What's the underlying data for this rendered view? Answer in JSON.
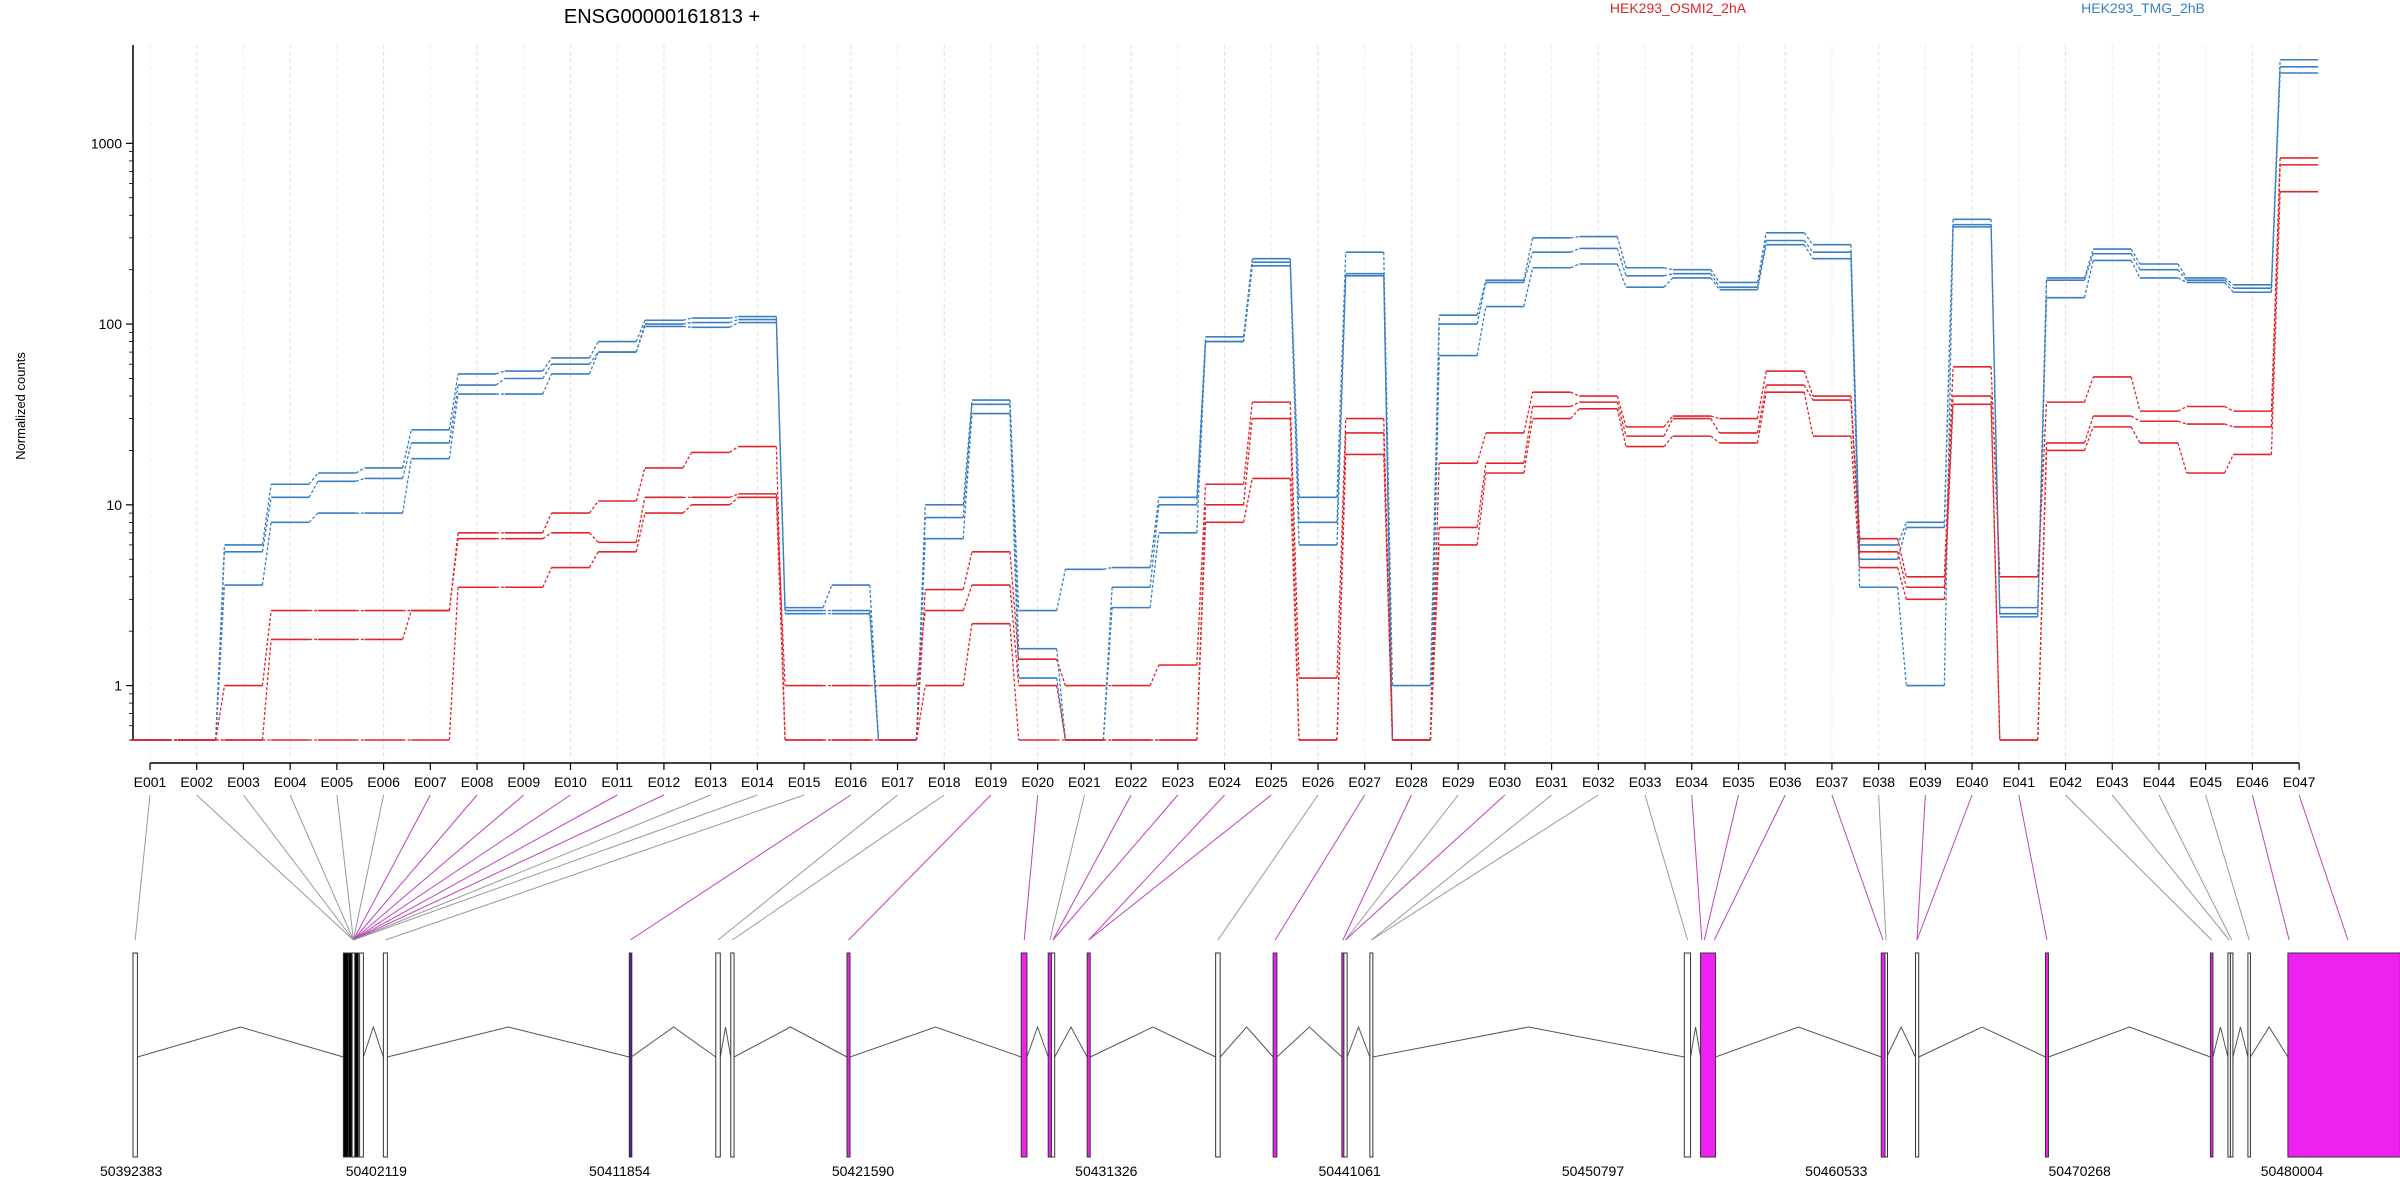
{
  "chart_data": {
    "type": "line",
    "title": "ENSG00000161813 +",
    "ylabel": "Normalized counts",
    "yscale": "log",
    "ylim": [
      0.5,
      3500
    ],
    "grid": false,
    "legend_position": "top-right",
    "y_ticks": [
      {
        "value": 1,
        "label": "1"
      },
      {
        "value": 10,
        "label": "10"
      },
      {
        "value": 100,
        "label": "100"
      },
      {
        "value": 1000,
        "label": "1000"
      }
    ],
    "categories": [
      "E001",
      "E002",
      "E003",
      "E004",
      "E005",
      "E006",
      "E007",
      "E008",
      "E009",
      "E010",
      "E011",
      "E012",
      "E013",
      "E014",
      "E015",
      "E016",
      "E017",
      "E018",
      "E019",
      "E020",
      "E021",
      "E022",
      "E023",
      "E024",
      "E025",
      "E026",
      "E027",
      "E028",
      "E029",
      "E030",
      "E031",
      "E032",
      "E033",
      "E034",
      "E035",
      "E036",
      "E037",
      "E038",
      "E039",
      "E040",
      "E041",
      "E042",
      "E043",
      "E044",
      "E045",
      "E046",
      "E047"
    ],
    "groups": [
      {
        "name": "HEK293_OSMI2_2hA",
        "color": "#e0262b"
      },
      {
        "name": "HEK293_TMG_2hB",
        "color": "#3a7fc1"
      }
    ],
    "series": [
      {
        "group": "HEK293_TMG_2hB",
        "values": [
          0.5,
          0.5,
          6,
          13,
          15,
          16,
          26,
          53,
          55,
          65,
          80,
          105,
          108,
          110,
          2.7,
          3.6,
          0.5,
          10,
          38,
          2.6,
          4.4,
          4.5,
          11,
          85,
          230,
          11,
          250,
          1,
          112,
          175,
          300,
          305,
          205,
          200,
          170,
          320,
          275,
          6,
          8,
          380,
          2.7,
          180,
          260,
          215,
          180,
          165,
          2900
        ]
      },
      {
        "group": "HEK293_TMG_2hB",
        "values": [
          0.5,
          0.5,
          5.5,
          11,
          13.5,
          14,
          22,
          46,
          50,
          60,
          70,
          100,
          102,
          106,
          2.6,
          2.6,
          0.5,
          8.5,
          36,
          1.6,
          0.5,
          3.5,
          10,
          80,
          220,
          8,
          190,
          0.5,
          100,
          170,
          250,
          262,
          185,
          190,
          160,
          290,
          250,
          5,
          7.5,
          355,
          2.5,
          175,
          245,
          200,
          175,
          158,
          2650
        ]
      },
      {
        "group": "HEK293_TMG_2hB",
        "values": [
          0.5,
          0.5,
          3.6,
          8,
          9,
          9,
          18,
          41,
          41,
          53,
          70,
          97,
          96,
          102,
          2.5,
          2.5,
          0.5,
          6.5,
          32,
          1.1,
          0.5,
          2.7,
          7,
          80,
          210,
          6,
          185,
          0.5,
          67,
          125,
          205,
          215,
          160,
          180,
          155,
          275,
          230,
          3.5,
          1,
          345,
          2.4,
          140,
          225,
          180,
          170,
          150,
          2450
        ]
      },
      {
        "group": "HEK293_OSMI2_2hA",
        "values": [
          0.5,
          0.5,
          1,
          2.6,
          2.6,
          2.6,
          2.6,
          7,
          7,
          9,
          10.5,
          16,
          19.5,
          21,
          0.5,
          0.5,
          0.5,
          3.4,
          5.5,
          1.4,
          1,
          1,
          1.3,
          13,
          37,
          1.1,
          30,
          0.5,
          17,
          25,
          42,
          40,
          27,
          31,
          30,
          55,
          40,
          6.5,
          4,
          58,
          4,
          37,
          51,
          33,
          35,
          33,
          830
        ]
      },
      {
        "group": "HEK293_OSMI2_2hA",
        "values": [
          0.5,
          0.5,
          0.5,
          1.8,
          1.8,
          1.8,
          2.6,
          6.5,
          6.5,
          7,
          6.2,
          11,
          11,
          11.5,
          1,
          1,
          1,
          2.6,
          3.6,
          1,
          0.5,
          0.5,
          0.5,
          10,
          30,
          0.5,
          25,
          0.5,
          7.5,
          17,
          35,
          37,
          24,
          30,
          25,
          46,
          38,
          5.5,
          3.5,
          40,
          0.5,
          22,
          31,
          29,
          28,
          27,
          760
        ]
      },
      {
        "group": "HEK293_OSMI2_2hA",
        "values": [
          0.5,
          0.5,
          0.5,
          0.5,
          0.5,
          0.5,
          0.5,
          3.5,
          3.5,
          4.5,
          5.5,
          9,
          10,
          11,
          0.5,
          0.5,
          0.5,
          1,
          2.2,
          0.5,
          0.5,
          0.5,
          0.5,
          8,
          14,
          0.5,
          19,
          0.5,
          6,
          15,
          30,
          34,
          21,
          24,
          22,
          42,
          24,
          4.5,
          3,
          36,
          0.5,
          20,
          27,
          22,
          15,
          19,
          540
        ]
      }
    ],
    "genomic_axis": {
      "start": 50392383,
      "end": 50480004,
      "tick_labels": [
        "50392383",
        "50402119",
        "50411854",
        "50421590",
        "50431326",
        "50441061",
        "50450797",
        "50460533",
        "50470268",
        "50480004"
      ],
      "exons": [
        {
          "start": 50392383,
          "end": 50392560,
          "fill": "#ffffff"
        },
        {
          "start": 50400800,
          "end": 50401000,
          "fill": "#000000"
        },
        {
          "start": 50401000,
          "end": 50401150,
          "fill": "#000000"
        },
        {
          "start": 50401150,
          "end": 50401260,
          "fill": "#ffffff"
        },
        {
          "start": 50401260,
          "end": 50401400,
          "fill": "#000000"
        },
        {
          "start": 50401450,
          "end": 50401600,
          "fill": "#ffffff"
        },
        {
          "start": 50402400,
          "end": 50402560,
          "fill": "#ffffff"
        },
        {
          "start": 50412240,
          "end": 50412320,
          "fill": "#6a0dad"
        },
        {
          "start": 50415700,
          "end": 50415880,
          "fill": "#ffffff"
        },
        {
          "start": 50416300,
          "end": 50416430,
          "fill": "#ffffff"
        },
        {
          "start": 50420950,
          "end": 50421070,
          "fill": "#ee22ee"
        },
        {
          "start": 50427920,
          "end": 50428150,
          "fill": "#ee22ee"
        },
        {
          "start": 50429000,
          "end": 50429130,
          "fill": "#ee22ee"
        },
        {
          "start": 50429130,
          "end": 50429260,
          "fill": "#ffffff"
        },
        {
          "start": 50430560,
          "end": 50430680,
          "fill": "#ee22ee"
        },
        {
          "start": 50435700,
          "end": 50435880,
          "fill": "#ffffff"
        },
        {
          "start": 50438000,
          "end": 50438150,
          "fill": "#ee22ee"
        },
        {
          "start": 50440750,
          "end": 50440830,
          "fill": "#ee22ee"
        },
        {
          "start": 50440830,
          "end": 50440960,
          "fill": "#ffffff"
        },
        {
          "start": 50441870,
          "end": 50441990,
          "fill": "#ffffff"
        },
        {
          "start": 50454450,
          "end": 50454700,
          "fill": "#ffffff"
        },
        {
          "start": 50455100,
          "end": 50455700,
          "fill": "#ee22ee"
        },
        {
          "start": 50462330,
          "end": 50462480,
          "fill": "#ee22ee"
        },
        {
          "start": 50462480,
          "end": 50462550,
          "fill": "#ffffff"
        },
        {
          "start": 50463700,
          "end": 50463830,
          "fill": "#ffffff"
        },
        {
          "start": 50468900,
          "end": 50469020,
          "fill": "#ee22ee"
        },
        {
          "start": 50475500,
          "end": 50475600,
          "fill": "#ee22ee"
        },
        {
          "start": 50476200,
          "end": 50476300,
          "fill": "#ffffff"
        },
        {
          "start": 50476300,
          "end": 50476400,
          "fill": "#ffffff"
        },
        {
          "start": 50477000,
          "end": 50477100,
          "fill": "#ffffff"
        },
        {
          "start": 50478600,
          "end": 50483100,
          "fill": "#ee22ee"
        }
      ],
      "connectors": [
        {
          "label": "E001",
          "pos": 50392470,
          "color": "#999999"
        },
        {
          "label": "E002",
          "pos": 50401200,
          "color": "#999999"
        },
        {
          "label": "E003",
          "pos": 50401200,
          "color": "#999999"
        },
        {
          "label": "E004",
          "pos": 50401200,
          "color": "#999999"
        },
        {
          "label": "E005",
          "pos": 50401200,
          "color": "#999999"
        },
        {
          "label": "E006",
          "pos": 50401200,
          "color": "#999999"
        },
        {
          "label": "E007",
          "pos": 50401200,
          "color": "#bb44bb"
        },
        {
          "label": "E008",
          "pos": 50401200,
          "color": "#bb44bb"
        },
        {
          "label": "E009",
          "pos": 50401200,
          "color": "#bb44bb"
        },
        {
          "label": "E010",
          "pos": 50401200,
          "color": "#bb44bb"
        },
        {
          "label": "E011",
          "pos": 50401200,
          "color": "#bb44bb"
        },
        {
          "label": "E012",
          "pos": 50401200,
          "color": "#bb44bb"
        },
        {
          "label": "E013",
          "pos": 50401200,
          "color": "#999999"
        },
        {
          "label": "E014",
          "pos": 50401200,
          "color": "#999999"
        },
        {
          "label": "E015",
          "pos": 50402480,
          "color": "#999999"
        },
        {
          "label": "E016",
          "pos": 50412280,
          "color": "#bb44bb"
        },
        {
          "label": "E017",
          "pos": 50415790,
          "color": "#999999"
        },
        {
          "label": "E018",
          "pos": 50416360,
          "color": "#999999"
        },
        {
          "label": "E019",
          "pos": 50421010,
          "color": "#bb44bb"
        },
        {
          "label": "E020",
          "pos": 50428040,
          "color": "#bb44bb"
        },
        {
          "label": "E021",
          "pos": 50429070,
          "color": "#999999"
        },
        {
          "label": "E022",
          "pos": 50429190,
          "color": "#bb44bb"
        },
        {
          "label": "E023",
          "pos": 50429190,
          "color": "#bb44bb"
        },
        {
          "label": "E024",
          "pos": 50430620,
          "color": "#bb44bb"
        },
        {
          "label": "E025",
          "pos": 50430620,
          "color": "#bb44bb"
        },
        {
          "label": "E026",
          "pos": 50435790,
          "color": "#999999"
        },
        {
          "label": "E027",
          "pos": 50438080,
          "color": "#bb44bb"
        },
        {
          "label": "E028",
          "pos": 50440790,
          "color": "#bb44bb"
        },
        {
          "label": "E029",
          "pos": 50440890,
          "color": "#999999"
        },
        {
          "label": "E030",
          "pos": 50440890,
          "color": "#bb44bb"
        },
        {
          "label": "E031",
          "pos": 50441930,
          "color": "#999999"
        },
        {
          "label": "E032",
          "pos": 50441930,
          "color": "#999999"
        },
        {
          "label": "E033",
          "pos": 50454580,
          "color": "#999999"
        },
        {
          "label": "E034",
          "pos": 50455150,
          "color": "#bb44bb"
        },
        {
          "label": "E035",
          "pos": 50455250,
          "color": "#bb44bb"
        },
        {
          "label": "E036",
          "pos": 50455650,
          "color": "#bb44bb"
        },
        {
          "label": "E037",
          "pos": 50462400,
          "color": "#bb44bb"
        },
        {
          "label": "E038",
          "pos": 50462520,
          "color": "#999999"
        },
        {
          "label": "E039",
          "pos": 50463760,
          "color": "#bb44bb"
        },
        {
          "label": "E040",
          "pos": 50463760,
          "color": "#bb44bb"
        },
        {
          "label": "E041",
          "pos": 50468960,
          "color": "#bb44bb"
        },
        {
          "label": "E042",
          "pos": 50475550,
          "color": "#999999"
        },
        {
          "label": "E043",
          "pos": 50476250,
          "color": "#999999"
        },
        {
          "label": "E044",
          "pos": 50476350,
          "color": "#999999"
        },
        {
          "label": "E045",
          "pos": 50477050,
          "color": "#999999"
        },
        {
          "label": "E046",
          "pos": 50478650,
          "color": "#bb44bb"
        },
        {
          "label": "E047",
          "pos": 50481000,
          "color": "#bb44bb"
        }
      ]
    }
  }
}
